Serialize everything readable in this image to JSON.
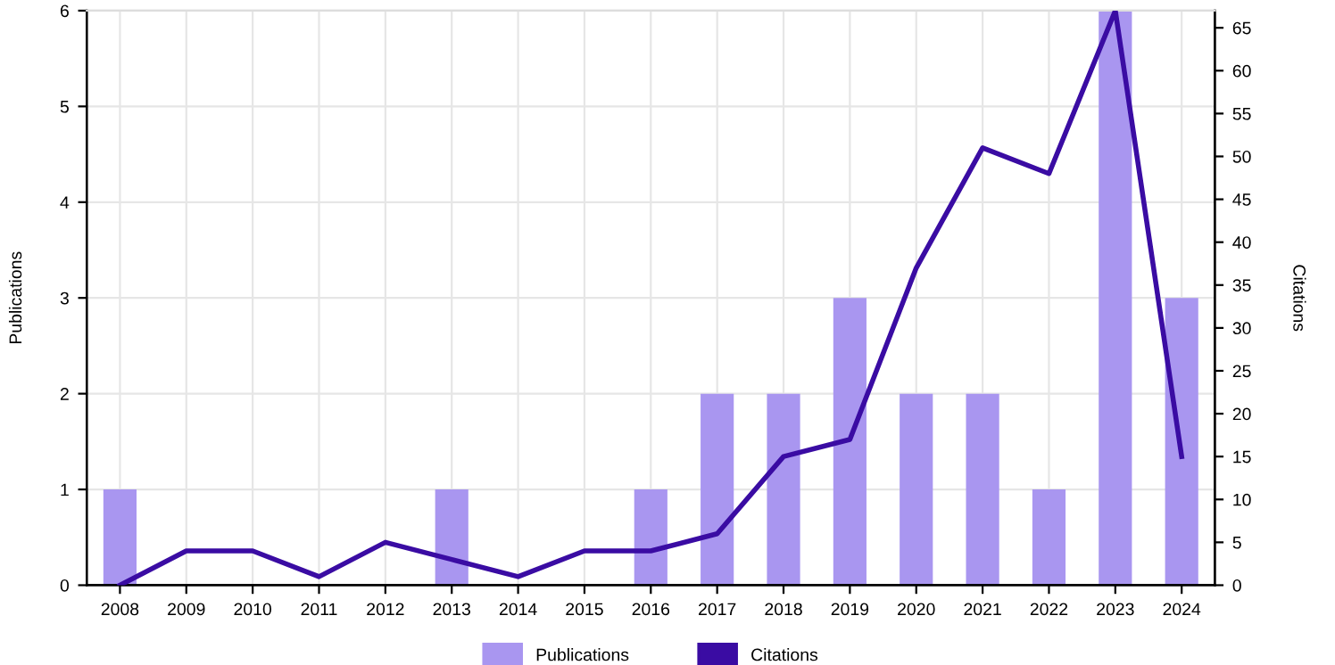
{
  "chart_data": {
    "type": "bar",
    "ylabel": "Publications",
    "y2label": "Citations",
    "categories": [
      "2008",
      "2009",
      "2010",
      "2011",
      "2012",
      "2013",
      "2014",
      "2015",
      "2016",
      "2017",
      "2018",
      "2019",
      "2020",
      "2021",
      "2022",
      "2023",
      "2024"
    ],
    "series": [
      {
        "name": "Publications",
        "color": "#a996f0",
        "values": [
          1,
          0,
          0,
          0,
          0,
          1,
          0,
          0,
          1,
          2,
          2,
          3,
          2,
          2,
          1,
          6,
          3
        ]
      },
      {
        "name": "Citations",
        "type": "line",
        "axis": "y2",
        "color": "#3a0ca3",
        "values": [
          0,
          4,
          4,
          1,
          5,
          3,
          1,
          4,
          4,
          6,
          15,
          17,
          37,
          51,
          48,
          67,
          15
        ]
      }
    ],
    "ylim": [
      0,
      6
    ],
    "yticks": [
      0,
      1,
      2,
      3,
      4,
      5,
      6
    ],
    "y2lim": [
      0,
      67
    ],
    "y2ticks": [
      0,
      5,
      10,
      15,
      20,
      25,
      30,
      35,
      40,
      45,
      50,
      55,
      60,
      65
    ],
    "grid": true,
    "legend": "bottom",
    "marker": "none",
    "line_style": "solid"
  }
}
